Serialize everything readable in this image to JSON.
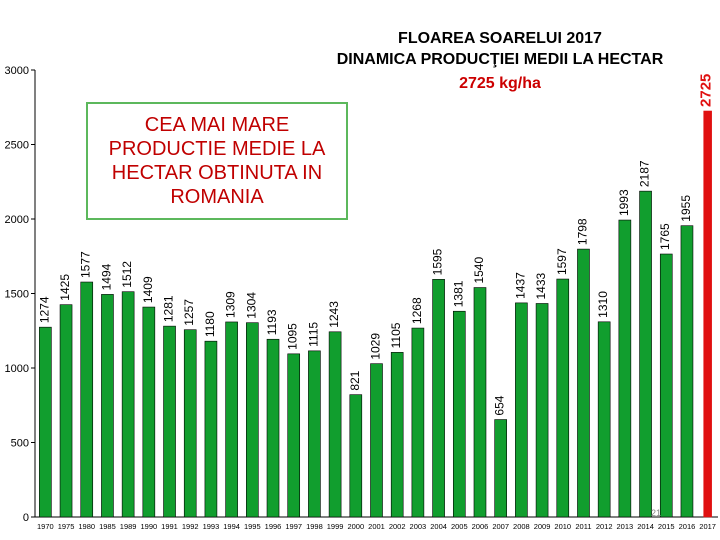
{
  "title_line1": "FLOAREA SOARELUI 2017",
  "title_line2": "DINAMICA PRODUCŢIEI MEDII LA HECTAR",
  "title_line3": "2725 kg/ha",
  "callout": "CEA MAI MARE\nPRODUCTIE MEDIE LA\nHECTAR OBTINUTA IN\nROMANIA",
  "page_number": "21",
  "colors": {
    "bar": "#119e2e",
    "highlight": "#e01010",
    "callout_border": "#5cb85c",
    "title_accent": "#cc0000"
  },
  "chart_data": {
    "type": "bar",
    "categories": [
      "1970",
      "1975",
      "1980",
      "1985",
      "1989",
      "1990",
      "1991",
      "1992",
      "1993",
      "1994",
      "1995",
      "1996",
      "1997",
      "1998",
      "1999",
      "2000",
      "2001",
      "2002",
      "2003",
      "2004",
      "2005",
      "2006",
      "2007",
      "2008",
      "2009",
      "2010",
      "2011",
      "2012",
      "2013",
      "2014",
      "2015",
      "2016",
      "2017"
    ],
    "values": [
      1274,
      1425,
      1577,
      1494,
      1512,
      1409,
      1281,
      1257,
      1180,
      1309,
      1304,
      1193,
      1095,
      1115,
      1243,
      821,
      1029,
      1105,
      1268,
      1595,
      1381,
      1540,
      654,
      1437,
      1433,
      1597,
      1798,
      1310,
      1993,
      2187,
      1765,
      1955,
      2725
    ],
    "yticks": [
      0,
      500,
      1000,
      1500,
      2000,
      2500,
      3000
    ],
    "ylim": [
      0,
      3000
    ],
    "highlight_index": 32,
    "legend": "none",
    "grid": false
  }
}
